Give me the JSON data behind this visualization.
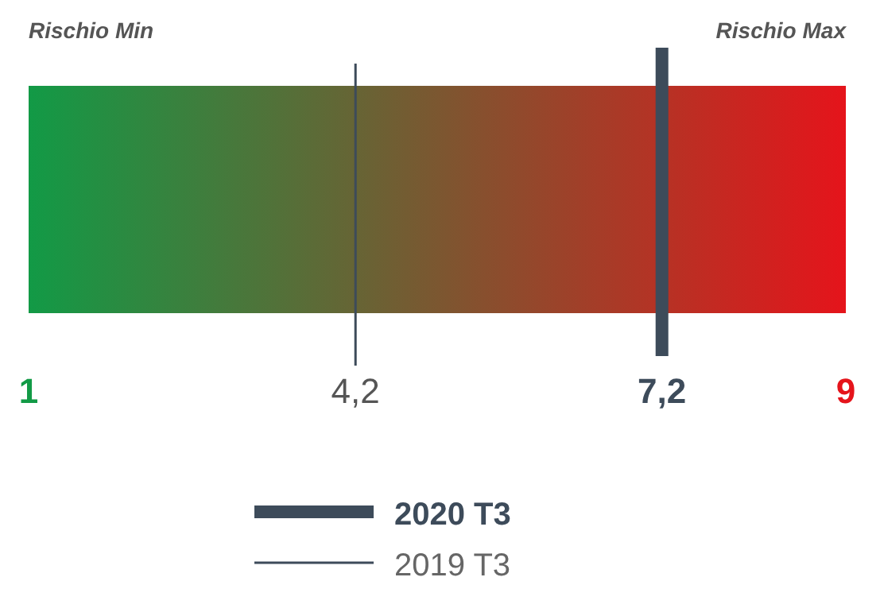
{
  "chart_data": {
    "type": "bar",
    "orientation": "horizontal",
    "categories": [
      null
    ],
    "base": [
      1
    ],
    "values": [
      8
    ],
    "xlim": [
      1,
      9
    ],
    "xticks": [
      1,
      {
        "value": 4.2,
        "label": "4,2"
      },
      {
        "value": 7.2,
        "label": "7,2"
      },
      9
    ],
    "color": "#129a46",
    "ref_lines": [
      {
        "axis": "x",
        "value": 7.2,
        "label": "2020 T3",
        "color": "#3d4b5a"
      },
      {
        "axis": "x",
        "value": 4.2,
        "label": "2019 T3",
        "color": "#3d4b5a"
      }
    ],
    "annotations": [
      "Rischio Min",
      "Rischio Max"
    ],
    "legend": "bottom"
  }
}
